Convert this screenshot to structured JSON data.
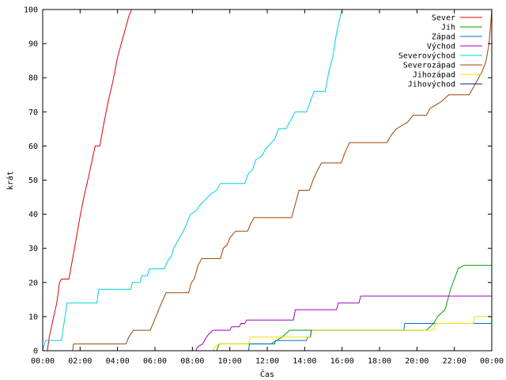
{
  "chart_data": {
    "type": "line",
    "xlabel": "Čas",
    "ylabel": "krát",
    "xlim": [
      0,
      24
    ],
    "ylim": [
      0,
      100
    ],
    "x_ticks": [
      0,
      2,
      4,
      6,
      8,
      10,
      12,
      14,
      16,
      18,
      20,
      22,
      24
    ],
    "x_tick_labels": [
      "00:00",
      "02:00",
      "04:00",
      "06:00",
      "08:00",
      "10:00",
      "12:00",
      "14:00",
      "16:00",
      "18:00",
      "20:00",
      "22:00",
      "00:00"
    ],
    "y_ticks": [
      0,
      10,
      20,
      30,
      40,
      50,
      60,
      70,
      80,
      90,
      100
    ],
    "y_tick_labels": [
      "0",
      "10",
      "20",
      "30",
      "40",
      "50",
      "60",
      "70",
      "80",
      "90",
      "100"
    ],
    "grid": false,
    "legend_position": "top-right",
    "series": [
      {
        "name": "Sever",
        "color": "#e00000",
        "points": [
          [
            0.25,
            0
          ],
          [
            0.35,
            4
          ],
          [
            0.55,
            9
          ],
          [
            0.75,
            14
          ],
          [
            0.9,
            20
          ],
          [
            1.0,
            21
          ],
          [
            1.4,
            21
          ],
          [
            1.5,
            24
          ],
          [
            1.7,
            30
          ],
          [
            1.95,
            38
          ],
          [
            2.2,
            45
          ],
          [
            2.45,
            51
          ],
          [
            2.65,
            56
          ],
          [
            2.8,
            60
          ],
          [
            3.05,
            60
          ],
          [
            3.25,
            66
          ],
          [
            3.5,
            73
          ],
          [
            3.75,
            79
          ],
          [
            4.0,
            86
          ],
          [
            4.25,
            91
          ],
          [
            4.45,
            95
          ],
          [
            4.6,
            98
          ],
          [
            4.75,
            100
          ]
        ]
      },
      {
        "name": "Jih",
        "color": "#00a000",
        "points": [
          [
            9.3,
            0
          ],
          [
            9.35,
            1
          ],
          [
            9.45,
            2
          ],
          [
            12.2,
            2
          ],
          [
            12.5,
            3
          ],
          [
            12.8,
            4
          ],
          [
            13.0,
            5
          ],
          [
            13.2,
            6
          ],
          [
            14.5,
            6
          ],
          [
            20.5,
            6
          ],
          [
            20.9,
            8
          ],
          [
            21.1,
            10
          ],
          [
            21.5,
            12
          ],
          [
            21.7,
            16
          ],
          [
            21.8,
            18
          ],
          [
            22.0,
            21
          ],
          [
            22.2,
            24
          ],
          [
            22.5,
            25
          ],
          [
            24.0,
            25
          ]
        ]
      },
      {
        "name": "Západ",
        "color": "#0070c0",
        "points": [
          [
            11.0,
            0
          ],
          [
            11.05,
            2
          ],
          [
            12.4,
            2
          ],
          [
            12.45,
            3
          ],
          [
            14.1,
            3
          ],
          [
            14.15,
            4
          ],
          [
            14.3,
            4
          ],
          [
            14.35,
            6
          ],
          [
            19.3,
            6
          ],
          [
            19.35,
            8
          ],
          [
            24.0,
            8
          ]
        ]
      },
      {
        "name": "Východ",
        "color": "#a000c0",
        "points": [
          [
            8.2,
            0
          ],
          [
            8.25,
            1
          ],
          [
            8.55,
            2
          ],
          [
            8.65,
            3
          ],
          [
            8.75,
            4
          ],
          [
            8.9,
            5
          ],
          [
            9.1,
            6
          ],
          [
            10.0,
            6
          ],
          [
            10.1,
            7
          ],
          [
            10.5,
            7
          ],
          [
            10.6,
            8
          ],
          [
            10.8,
            8
          ],
          [
            10.9,
            9
          ],
          [
            13.4,
            9
          ],
          [
            13.5,
            12
          ],
          [
            15.7,
            12
          ],
          [
            15.8,
            14
          ],
          [
            16.9,
            14
          ],
          [
            17.0,
            16
          ],
          [
            24.0,
            16
          ]
        ]
      },
      {
        "name": "Severovýchod",
        "color": "#00d0e0",
        "points": [
          [
            0,
            0
          ],
          [
            0.15,
            3
          ],
          [
            1.0,
            3
          ],
          [
            1.3,
            14
          ],
          [
            2.9,
            14
          ],
          [
            3.0,
            18
          ],
          [
            4.7,
            18
          ],
          [
            4.8,
            20
          ],
          [
            5.2,
            20
          ],
          [
            5.3,
            22
          ],
          [
            5.6,
            22
          ],
          [
            5.7,
            24
          ],
          [
            6.5,
            24
          ],
          [
            6.65,
            26
          ],
          [
            6.9,
            28
          ],
          [
            7.0,
            30
          ],
          [
            7.2,
            32
          ],
          [
            7.4,
            34
          ],
          [
            7.6,
            36
          ],
          [
            7.75,
            38
          ],
          [
            7.9,
            40
          ],
          [
            8.2,
            41
          ],
          [
            8.45,
            43
          ],
          [
            8.65,
            44
          ],
          [
            9.0,
            46
          ],
          [
            9.3,
            47
          ],
          [
            9.5,
            49
          ],
          [
            10.8,
            49
          ],
          [
            11.0,
            52
          ],
          [
            11.2,
            53
          ],
          [
            11.4,
            56
          ],
          [
            11.7,
            57
          ],
          [
            11.9,
            59
          ],
          [
            12.05,
            60
          ],
          [
            12.4,
            62
          ],
          [
            12.6,
            65
          ],
          [
            13.0,
            65
          ],
          [
            13.3,
            68
          ],
          [
            13.5,
            70
          ],
          [
            14.1,
            70
          ],
          [
            14.3,
            73
          ],
          [
            14.5,
            76
          ],
          [
            15.1,
            76
          ],
          [
            15.3,
            82
          ],
          [
            15.5,
            86
          ],
          [
            15.7,
            93
          ],
          [
            15.9,
            98
          ],
          [
            16.0,
            100
          ]
        ]
      },
      {
        "name": "Severozápad",
        "color": "#a04000",
        "points": [
          [
            1.6,
            0
          ],
          [
            1.65,
            2
          ],
          [
            4.45,
            2
          ],
          [
            4.6,
            4
          ],
          [
            4.85,
            6
          ],
          [
            5.75,
            6
          ],
          [
            5.9,
            8
          ],
          [
            6.05,
            10
          ],
          [
            6.2,
            12
          ],
          [
            6.35,
            14
          ],
          [
            6.6,
            17
          ],
          [
            7.8,
            17
          ],
          [
            7.95,
            20
          ],
          [
            8.1,
            21
          ],
          [
            8.2,
            23
          ],
          [
            8.3,
            25
          ],
          [
            8.5,
            27
          ],
          [
            9.5,
            27
          ],
          [
            9.65,
            30
          ],
          [
            9.85,
            31
          ],
          [
            10.0,
            33
          ],
          [
            10.3,
            35
          ],
          [
            10.95,
            35
          ],
          [
            11.1,
            37
          ],
          [
            11.3,
            39
          ],
          [
            13.3,
            39
          ],
          [
            13.5,
            43
          ],
          [
            13.7,
            47
          ],
          [
            14.25,
            47
          ],
          [
            14.45,
            50
          ],
          [
            14.7,
            53
          ],
          [
            14.9,
            55
          ],
          [
            15.95,
            55
          ],
          [
            16.15,
            58
          ],
          [
            16.4,
            61
          ],
          [
            18.4,
            61
          ],
          [
            18.6,
            63
          ],
          [
            18.9,
            65
          ],
          [
            19.2,
            66
          ],
          [
            19.5,
            67
          ],
          [
            19.8,
            69
          ],
          [
            20.5,
            69
          ],
          [
            20.7,
            71
          ],
          [
            21.0,
            72
          ],
          [
            21.3,
            73
          ],
          [
            21.7,
            75
          ],
          [
            22.8,
            75
          ],
          [
            23.0,
            77
          ],
          [
            23.3,
            80
          ],
          [
            23.5,
            82
          ],
          [
            23.7,
            85
          ],
          [
            23.85,
            90
          ],
          [
            23.95,
            96
          ],
          [
            24.0,
            100
          ]
        ]
      },
      {
        "name": "Jihozápad",
        "color": "#f0e000",
        "points": [
          [
            9.1,
            0
          ],
          [
            9.2,
            1
          ],
          [
            9.4,
            2
          ],
          [
            11.0,
            2
          ],
          [
            11.1,
            4
          ],
          [
            14.35,
            4
          ],
          [
            14.4,
            6
          ],
          [
            20.9,
            6
          ],
          [
            21.0,
            8
          ],
          [
            23.0,
            8
          ],
          [
            23.1,
            10
          ],
          [
            24.0,
            10
          ]
        ]
      },
      {
        "name": "Jihovýchod",
        "color": "#0020a0",
        "points": []
      }
    ]
  }
}
